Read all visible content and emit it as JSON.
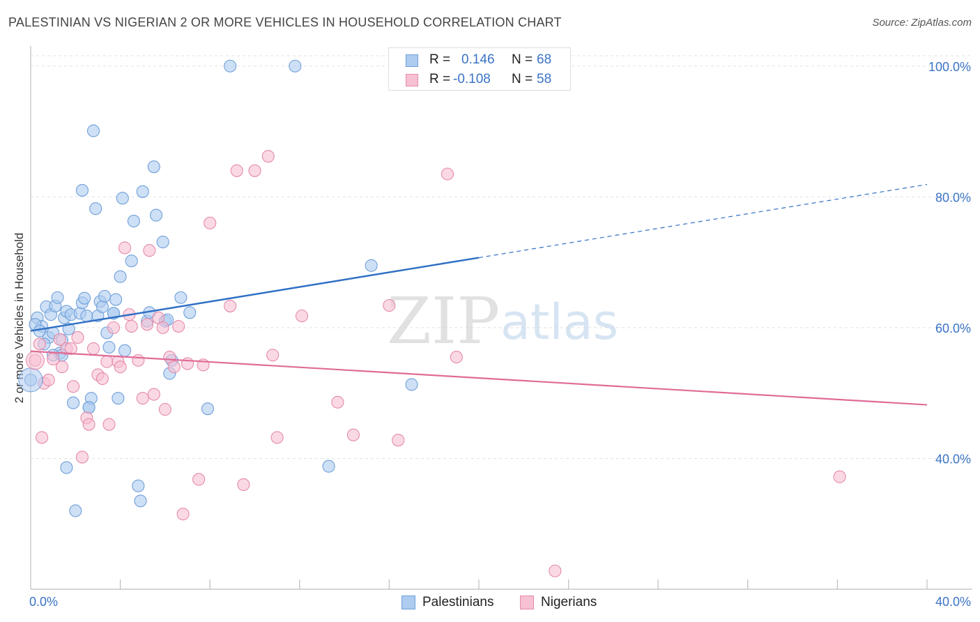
{
  "title": "PALESTINIAN VS NIGERIAN 2 OR MORE VEHICLES IN HOUSEHOLD CORRELATION CHART",
  "source": "Source: ZipAtlas.com",
  "watermark": {
    "zip": "ZIP",
    "atlas": "atlas"
  },
  "stats": [
    {
      "r_label": "R =",
      "r_value": "0.146",
      "n_label": "N =",
      "n_value": "68",
      "color": "#aecbf0",
      "border": "#6f9fd9"
    },
    {
      "r_label": "R =",
      "r_value": "-0.108",
      "n_label": "N =",
      "n_value": "58",
      "color": "#f7c0d3",
      "border": "#e58aa9"
    }
  ],
  "legend": [
    {
      "label": "Palestinians",
      "color": "#aecbf0",
      "border": "#6f9fd9"
    },
    {
      "label": "Nigerians",
      "color": "#f7c0d3",
      "border": "#e58aa9"
    }
  ],
  "chart_data": {
    "type": "scatter",
    "title": "PALESTINIAN VS NIGERIAN 2 OR MORE VEHICLES IN HOUSEHOLD CORRELATION CHART",
    "xlabel": "",
    "ylabel": "2 or more Vehicles in Household",
    "xlim": [
      0,
      40
    ],
    "ylim": [
      20,
      102
    ],
    "x_tick_labels": [
      "0.0%",
      "40.0%"
    ],
    "y_ticks": [
      40,
      60,
      80,
      100
    ],
    "y_tick_labels": [
      "40.0%",
      "60.0%",
      "80.0%",
      "100.0%"
    ],
    "grid": true,
    "series": [
      {
        "name": "Palestinians",
        "color": "#6f9fd9",
        "fill": "#aecbf0",
        "trend": {
          "x0": 0,
          "y0": 59.5,
          "x1": 20,
          "y1": 70.7,
          "dash_to_x": 40,
          "dash_to_y": 81.9,
          "color": "#2f6fc4"
        },
        "points": [
          [
            0.3,
            61.5
          ],
          [
            0.5,
            60.2
          ],
          [
            0.7,
            63.2
          ],
          [
            0.8,
            58.5
          ],
          [
            0.9,
            62.0
          ],
          [
            1.0,
            59.2
          ],
          [
            1.1,
            63.3
          ],
          [
            1.2,
            64.6
          ],
          [
            1.3,
            56.1
          ],
          [
            1.4,
            58.1
          ],
          [
            1.5,
            61.5
          ],
          [
            1.6,
            62.5
          ],
          [
            1.7,
            59.8
          ],
          [
            1.8,
            62.0
          ],
          [
            1.9,
            48.5
          ],
          [
            2.2,
            62.2
          ],
          [
            2.3,
            63.8
          ],
          [
            2.4,
            64.5
          ],
          [
            2.5,
            61.8
          ],
          [
            2.6,
            47.8
          ],
          [
            2.7,
            49.2
          ],
          [
            2.8,
            90.1
          ],
          [
            2.9,
            78.2
          ],
          [
            3.0,
            61.8
          ],
          [
            3.1,
            64.0
          ],
          [
            3.2,
            63.2
          ],
          [
            3.3,
            64.8
          ],
          [
            3.4,
            59.2
          ],
          [
            3.5,
            57.0
          ],
          [
            3.7,
            62.2
          ],
          [
            3.8,
            64.3
          ],
          [
            3.9,
            49.2
          ],
          [
            4.0,
            67.8
          ],
          [
            4.1,
            79.8
          ],
          [
            4.2,
            56.5
          ],
          [
            4.5,
            70.2
          ],
          [
            4.6,
            76.3
          ],
          [
            4.8,
            35.8
          ],
          [
            4.9,
            33.5
          ],
          [
            5.0,
            80.8
          ],
          [
            5.2,
            61.0
          ],
          [
            5.3,
            62.3
          ],
          [
            5.5,
            84.6
          ],
          [
            5.6,
            77.2
          ],
          [
            5.9,
            73.1
          ],
          [
            6.0,
            61.0
          ],
          [
            6.2,
            53.0
          ],
          [
            6.3,
            55.0
          ],
          [
            6.7,
            64.6
          ],
          [
            7.1,
            62.3
          ],
          [
            7.9,
            47.6
          ],
          [
            8.9,
            100.0
          ],
          [
            11.8,
            100.0
          ],
          [
            13.3,
            38.8
          ],
          [
            15.2,
            69.5
          ],
          [
            17.0,
            51.3
          ],
          [
            2.0,
            32.0
          ],
          [
            2.3,
            81.0
          ],
          [
            1.0,
            55.8
          ],
          [
            0.6,
            57.5
          ],
          [
            1.6,
            38.6
          ],
          [
            0.2,
            60.5
          ],
          [
            0.4,
            59.5
          ],
          [
            0.0,
            52.0
          ],
          [
            1.4,
            55.8
          ],
          [
            2.6,
            47.8
          ],
          [
            3.7,
            62.2
          ],
          [
            6.1,
            61.2
          ]
        ]
      },
      {
        "name": "Nigerians",
        "color": "#e58aa9",
        "fill": "#f7c0d3",
        "trend": {
          "x0": 0,
          "y0": 56.4,
          "x1": 40,
          "y1": 48.2,
          "color": "#e06b97"
        },
        "points": [
          [
            0.2,
            55.0
          ],
          [
            0.4,
            57.5
          ],
          [
            0.5,
            43.2
          ],
          [
            0.6,
            51.5
          ],
          [
            0.8,
            52.0
          ],
          [
            1.0,
            55.2
          ],
          [
            1.3,
            58.2
          ],
          [
            1.4,
            54.0
          ],
          [
            1.6,
            56.8
          ],
          [
            1.8,
            56.8
          ],
          [
            1.9,
            51.0
          ],
          [
            2.1,
            58.5
          ],
          [
            2.3,
            40.2
          ],
          [
            2.5,
            46.2
          ],
          [
            2.6,
            45.2
          ],
          [
            2.8,
            56.8
          ],
          [
            3.0,
            52.8
          ],
          [
            3.2,
            52.2
          ],
          [
            3.4,
            54.8
          ],
          [
            3.5,
            45.2
          ],
          [
            3.7,
            60.0
          ],
          [
            3.9,
            54.8
          ],
          [
            4.0,
            54.0
          ],
          [
            4.2,
            72.2
          ],
          [
            4.4,
            62.0
          ],
          [
            4.5,
            60.2
          ],
          [
            4.8,
            55.0
          ],
          [
            5.0,
            49.2
          ],
          [
            5.2,
            60.5
          ],
          [
            5.3,
            71.8
          ],
          [
            5.5,
            49.8
          ],
          [
            5.7,
            61.5
          ],
          [
            5.9,
            60.0
          ],
          [
            6.0,
            47.5
          ],
          [
            6.2,
            55.5
          ],
          [
            6.4,
            54.0
          ],
          [
            6.6,
            60.2
          ],
          [
            6.8,
            31.5
          ],
          [
            7.0,
            54.5
          ],
          [
            7.5,
            36.8
          ],
          [
            7.7,
            54.3
          ],
          [
            8.0,
            76.0
          ],
          [
            8.9,
            63.3
          ],
          [
            9.2,
            84.0
          ],
          [
            9.5,
            36.0
          ],
          [
            10.0,
            84.0
          ],
          [
            10.6,
            86.2
          ],
          [
            10.8,
            55.8
          ],
          [
            11.0,
            43.2
          ],
          [
            12.1,
            61.8
          ],
          [
            13.7,
            48.6
          ],
          [
            14.4,
            43.6
          ],
          [
            16.0,
            63.4
          ],
          [
            16.4,
            42.8
          ],
          [
            18.6,
            83.5
          ],
          [
            19.0,
            55.5
          ],
          [
            23.4,
            22.8
          ],
          [
            36.1,
            37.2
          ]
        ]
      }
    ]
  }
}
